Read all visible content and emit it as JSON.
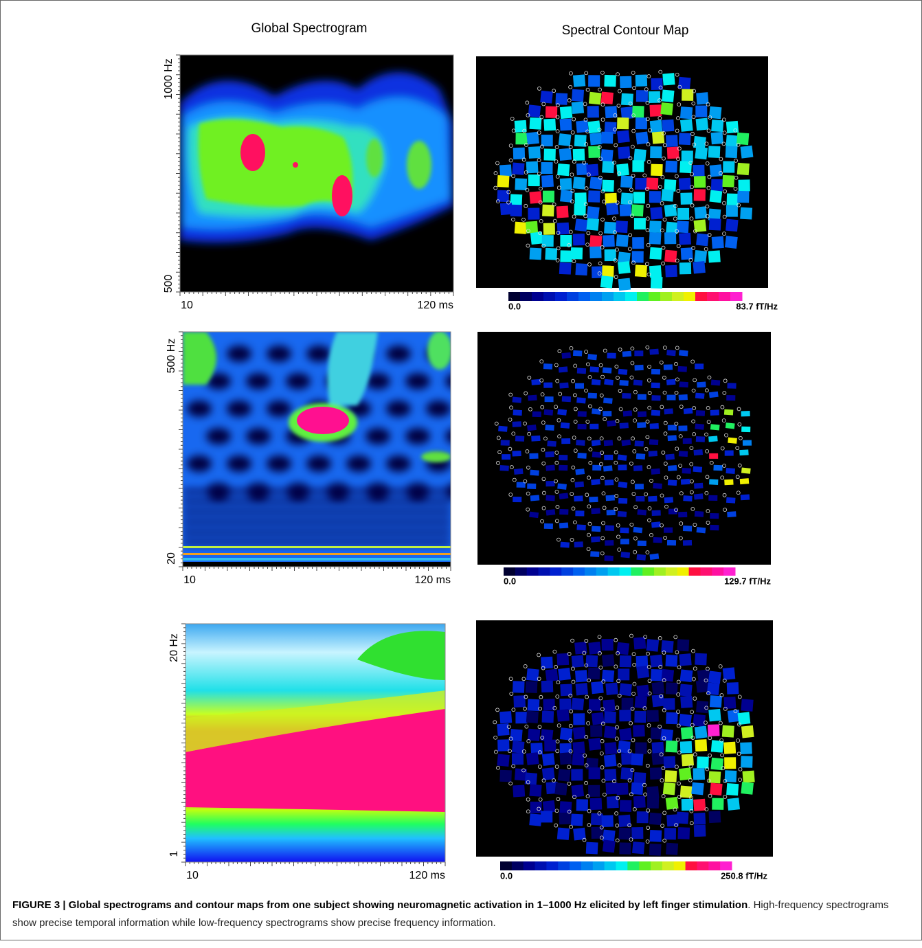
{
  "headers": {
    "left": "Global Spectrogram",
    "right": "Spectral Contour Map"
  },
  "rows": [
    {
      "y_top": "1000 Hz",
      "y_bottom": "500",
      "x_left": "10",
      "x_right": "120 ms",
      "scale_min": "0.0",
      "scale_max": "83.7 fT/Hz"
    },
    {
      "y_top": "500 Hz",
      "y_bottom": "20",
      "x_left": "10",
      "x_right": "120 ms",
      "scale_min": "0.0",
      "scale_max": "129.7 fT/Hz"
    },
    {
      "y_top": "20 Hz",
      "y_bottom": "1",
      "x_left": "10",
      "x_right": "120 ms",
      "scale_min": "0.0",
      "scale_max": "250.8 fT/Hz"
    }
  ],
  "caption": {
    "label": "FIGURE 3 | ",
    "bold": "Global spectrograms and contour maps from one subject showing neuromagnetic activation in 1–1000 Hz elicited by left finger stimulation",
    "text": ". High-frequency spectrograms show precise temporal information while low-frequency spectrograms show precise frequency information."
  }
}
